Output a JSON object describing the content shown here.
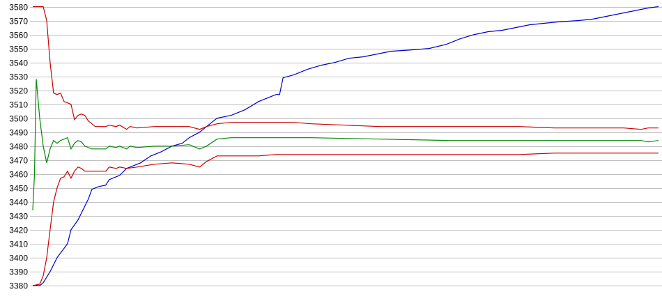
{
  "chart_data": {
    "type": "line",
    "title": "",
    "xlabel": "",
    "ylabel": "",
    "ylim": [
      3380,
      3580
    ],
    "xlim": [
      0,
      180
    ],
    "grid": true,
    "legend": "none",
    "yticks": [
      3380,
      3390,
      3400,
      3410,
      3420,
      3430,
      3440,
      3450,
      3460,
      3470,
      3480,
      3490,
      3500,
      3510,
      3520,
      3530,
      3540,
      3550,
      3560,
      3570,
      3580
    ],
    "series": [
      {
        "name": "blue",
        "color": "#0000cc",
        "points": [
          [
            0,
            3380
          ],
          [
            2,
            3380
          ],
          [
            3,
            3382
          ],
          [
            5,
            3390
          ],
          [
            7,
            3400
          ],
          [
            10,
            3410
          ],
          [
            11,
            3420
          ],
          [
            13,
            3427
          ],
          [
            14,
            3432
          ],
          [
            16,
            3442
          ],
          [
            17,
            3449
          ],
          [
            19,
            3451
          ],
          [
            21,
            3452
          ],
          [
            22,
            3456
          ],
          [
            25,
            3459
          ],
          [
            27,
            3464
          ],
          [
            29,
            3466
          ],
          [
            31,
            3468
          ],
          [
            34,
            3473
          ],
          [
            37,
            3476
          ],
          [
            40,
            3480
          ],
          [
            43,
            3482
          ],
          [
            45,
            3486
          ],
          [
            48,
            3490
          ],
          [
            50,
            3494
          ],
          [
            53,
            3500
          ],
          [
            57,
            3502
          ],
          [
            61,
            3506
          ],
          [
            65,
            3512
          ],
          [
            70,
            3517
          ],
          [
            71,
            3517
          ],
          [
            72,
            3529
          ],
          [
            75,
            3531
          ],
          [
            79,
            3535
          ],
          [
            83,
            3538
          ],
          [
            87,
            3540
          ],
          [
            91,
            3543
          ],
          [
            95,
            3544
          ],
          [
            99,
            3546
          ],
          [
            103,
            3548
          ],
          [
            109,
            3549
          ],
          [
            114,
            3550
          ],
          [
            119,
            3553
          ],
          [
            123,
            3557
          ],
          [
            127,
            3560
          ],
          [
            131,
            3562
          ],
          [
            135,
            3563
          ],
          [
            139,
            3565
          ],
          [
            143,
            3567
          ],
          [
            147,
            3568
          ],
          [
            151,
            3569
          ],
          [
            157,
            3570
          ],
          [
            161,
            3571
          ],
          [
            165,
            3573
          ],
          [
            169,
            3575
          ],
          [
            173,
            3577
          ],
          [
            177,
            3579
          ],
          [
            180,
            3580
          ]
        ]
      },
      {
        "name": "red-upper",
        "color": "#cc0000",
        "points": [
          [
            0,
            3580
          ],
          [
            3,
            3580
          ],
          [
            4,
            3570
          ],
          [
            5,
            3540
          ],
          [
            6,
            3518
          ],
          [
            7,
            3517
          ],
          [
            8,
            3518
          ],
          [
            9,
            3512
          ],
          [
            10,
            3511
          ],
          [
            11,
            3510
          ],
          [
            12,
            3499
          ],
          [
            13,
            3502
          ],
          [
            14,
            3503
          ],
          [
            15,
            3502
          ],
          [
            16,
            3498
          ],
          [
            17,
            3496
          ],
          [
            18,
            3494
          ],
          [
            21,
            3494
          ],
          [
            22,
            3495
          ],
          [
            24,
            3494
          ],
          [
            25,
            3495
          ],
          [
            27,
            3492
          ],
          [
            28,
            3494
          ],
          [
            30,
            3493
          ],
          [
            35,
            3494
          ],
          [
            40,
            3494
          ],
          [
            45,
            3494
          ],
          [
            48,
            3492
          ],
          [
            50,
            3494
          ],
          [
            53,
            3496
          ],
          [
            57,
            3497
          ],
          [
            65,
            3497
          ],
          [
            70,
            3497
          ],
          [
            75,
            3497
          ],
          [
            80,
            3496
          ],
          [
            90,
            3495
          ],
          [
            100,
            3494
          ],
          [
            110,
            3494
          ],
          [
            120,
            3494
          ],
          [
            130,
            3494
          ],
          [
            140,
            3494
          ],
          [
            150,
            3493
          ],
          [
            160,
            3493
          ],
          [
            170,
            3493
          ],
          [
            175,
            3492
          ],
          [
            177,
            3493
          ],
          [
            180,
            3493
          ]
        ]
      },
      {
        "name": "green",
        "color": "#008800",
        "points": [
          [
            0,
            3434
          ],
          [
            0.5,
            3460
          ],
          [
            1,
            3528
          ],
          [
            2,
            3500
          ],
          [
            3,
            3480
          ],
          [
            4,
            3468
          ],
          [
            5,
            3478
          ],
          [
            6,
            3484
          ],
          [
            7,
            3482
          ],
          [
            8,
            3484
          ],
          [
            10,
            3486
          ],
          [
            11,
            3478
          ],
          [
            12,
            3482
          ],
          [
            13,
            3484
          ],
          [
            14,
            3483
          ],
          [
            15,
            3480
          ],
          [
            17,
            3478
          ],
          [
            21,
            3478
          ],
          [
            22,
            3480
          ],
          [
            24,
            3479
          ],
          [
            25,
            3480
          ],
          [
            27,
            3478
          ],
          [
            28,
            3480
          ],
          [
            30,
            3479
          ],
          [
            35,
            3480
          ],
          [
            40,
            3480
          ],
          [
            45,
            3481
          ],
          [
            48,
            3478
          ],
          [
            50,
            3480
          ],
          [
            53,
            3485
          ],
          [
            57,
            3486
          ],
          [
            70,
            3486
          ],
          [
            80,
            3486
          ],
          [
            100,
            3485
          ],
          [
            120,
            3484
          ],
          [
            140,
            3484
          ],
          [
            160,
            3484
          ],
          [
            175,
            3484
          ],
          [
            177,
            3483
          ],
          [
            180,
            3484
          ]
        ]
      },
      {
        "name": "red-lower",
        "color": "#cc0000",
        "points": [
          [
            0,
            3380
          ],
          [
            2,
            3381
          ],
          [
            3,
            3387
          ],
          [
            4,
            3400
          ],
          [
            5,
            3420
          ],
          [
            6,
            3440
          ],
          [
            7,
            3450
          ],
          [
            8,
            3457
          ],
          [
            9,
            3458
          ],
          [
            10,
            3462
          ],
          [
            11,
            3457
          ],
          [
            12,
            3462
          ],
          [
            13,
            3465
          ],
          [
            14,
            3464
          ],
          [
            15,
            3462
          ],
          [
            21,
            3462
          ],
          [
            22,
            3465
          ],
          [
            24,
            3464
          ],
          [
            25,
            3465
          ],
          [
            27,
            3464
          ],
          [
            30,
            3465
          ],
          [
            35,
            3467
          ],
          [
            40,
            3468
          ],
          [
            45,
            3467
          ],
          [
            48,
            3465
          ],
          [
            50,
            3469
          ],
          [
            53,
            3473
          ],
          [
            57,
            3473
          ],
          [
            65,
            3473
          ],
          [
            70,
            3474
          ],
          [
            80,
            3474
          ],
          [
            100,
            3474
          ],
          [
            120,
            3474
          ],
          [
            140,
            3474
          ],
          [
            150,
            3475
          ],
          [
            160,
            3475
          ],
          [
            170,
            3475
          ],
          [
            180,
            3475
          ]
        ]
      }
    ]
  }
}
